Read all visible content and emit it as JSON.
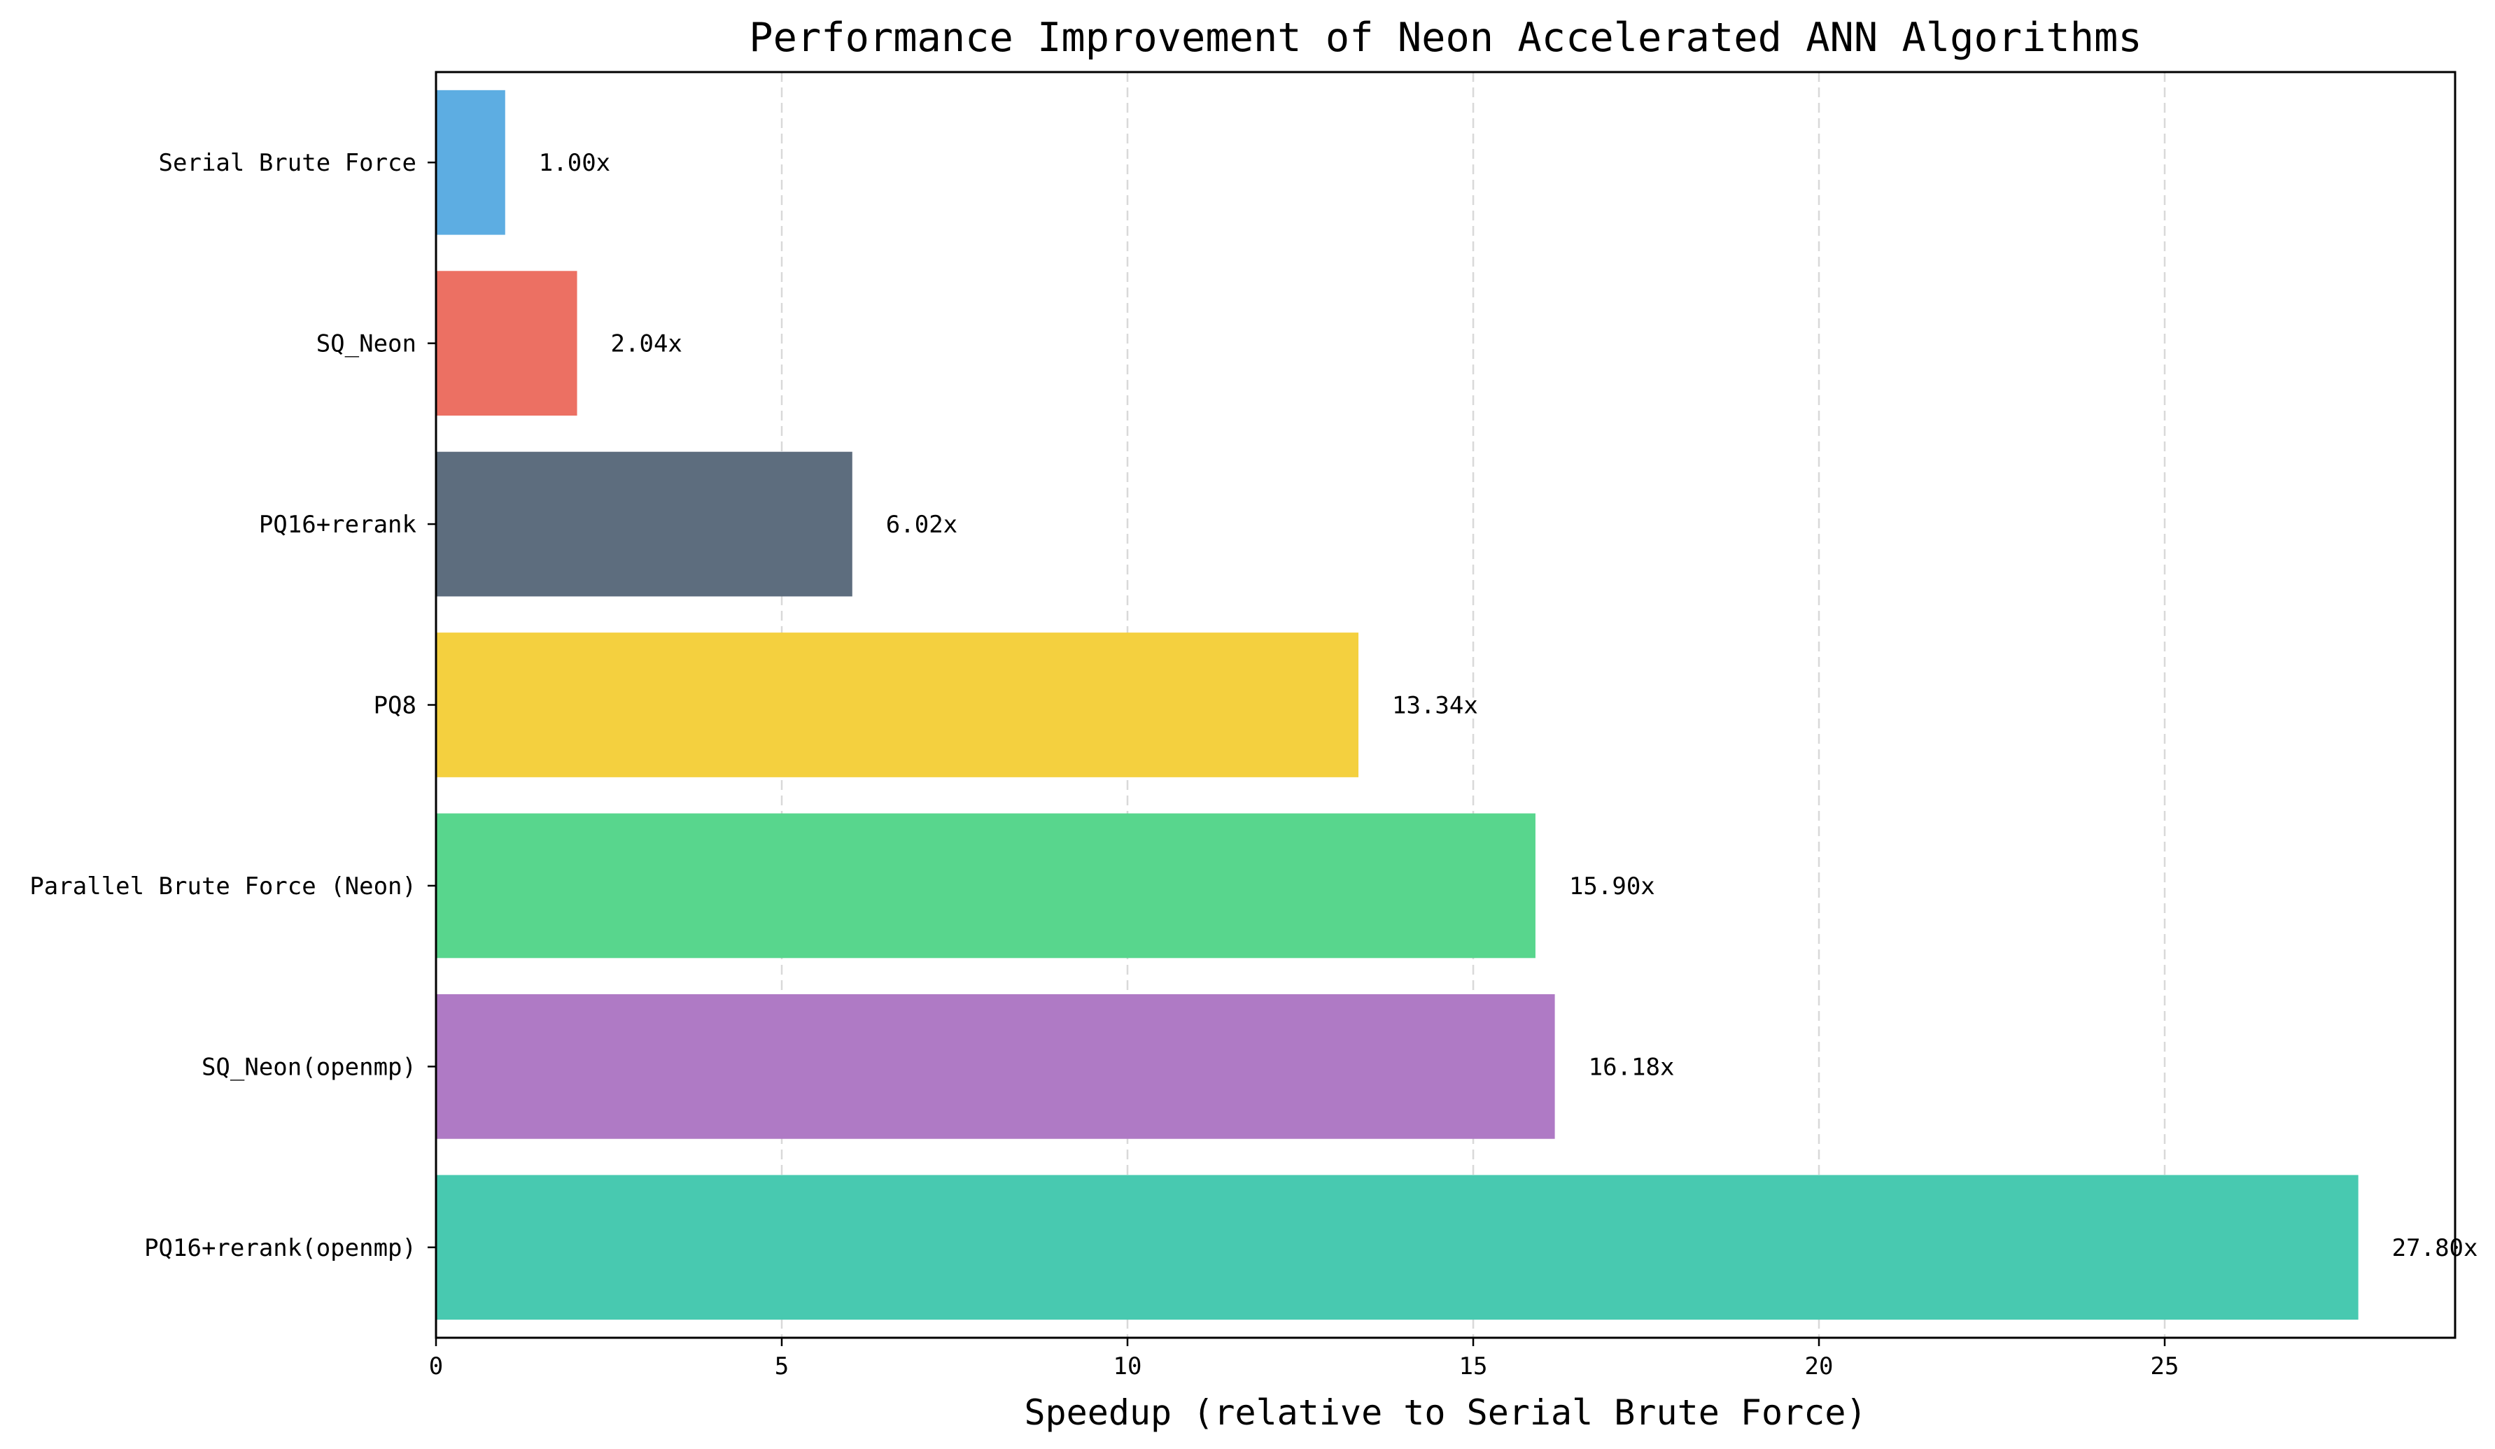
{
  "chart_data": {
    "type": "bar",
    "orientation": "horizontal",
    "title": "Performance Improvement of Neon Accelerated ANN Algorithms",
    "xlabel": "Speedup (relative to Serial Brute Force)",
    "ylabel": "",
    "categories": [
      "Serial Brute Force",
      "SQ_Neon",
      "PQ16+rerank",
      "PQ8",
      "Parallel Brute Force (Neon)",
      "SQ_Neon(openmp)",
      "PQ16+rerank(openmp)"
    ],
    "values": [
      1.0,
      2.04,
      6.02,
      13.34,
      15.9,
      16.18,
      27.8
    ],
    "value_labels": [
      "1.00x",
      "2.04x",
      "6.02x",
      "13.34x",
      "15.90x",
      "16.18x",
      "27.80x"
    ],
    "colors": [
      "#5dade2",
      "#ec7063",
      "#5d6d7e",
      "#f4d03f",
      "#58d68d",
      "#af7ac5",
      "#48c9b0"
    ],
    "xlim": [
      0,
      29.2
    ],
    "xticks": [
      0,
      5,
      10,
      15,
      20,
      25
    ],
    "xtick_labels": [
      "0",
      "5",
      "10",
      "15",
      "20",
      "25"
    ],
    "grid": "x-axis dashed",
    "legend": "none"
  }
}
